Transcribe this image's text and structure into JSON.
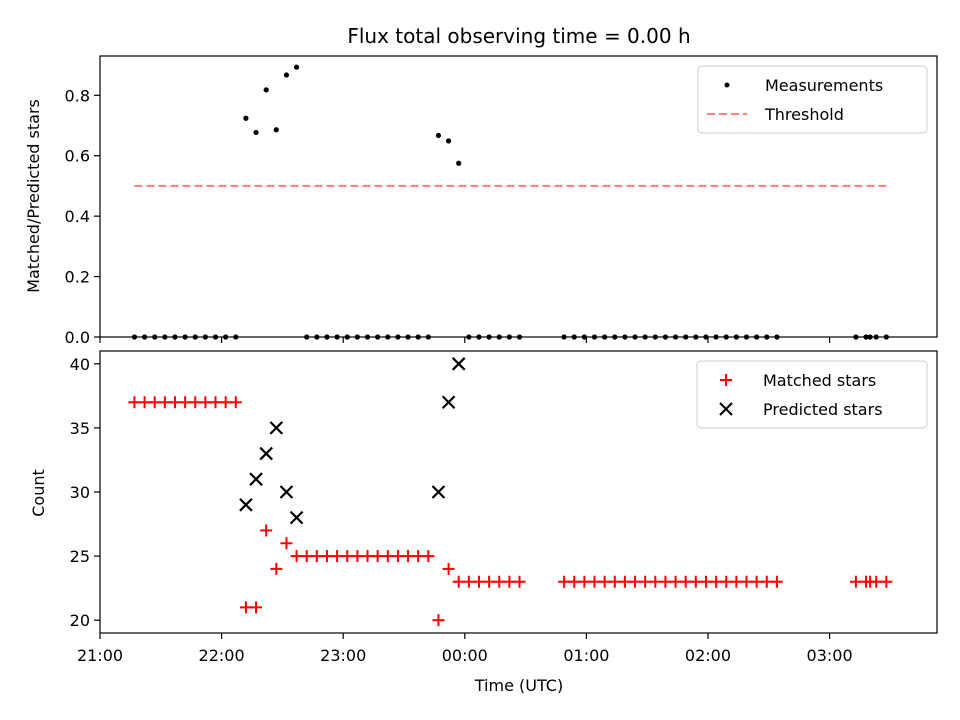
{
  "chart_data": [
    {
      "type": "scatter",
      "title": "Flux total observing time = 0.00 h",
      "ylabel": "Matched/Predicted stars",
      "xlabel": "",
      "xlim": [
        "21:00",
        "03:53"
      ],
      "ylim": [
        0,
        0.93
      ],
      "yticks": [
        0.0,
        0.2,
        0.4,
        0.6,
        0.8
      ],
      "ytick_labels": [
        "0.0",
        "0.2",
        "0.4",
        "0.6",
        "0.8"
      ],
      "legend_position": "top-right",
      "series": [
        {
          "name": "Measurements",
          "kind": "scatter",
          "marker": "dot",
          "color": "#000000",
          "x": [
            "21:17",
            "21:22",
            "21:27",
            "21:32",
            "21:37",
            "21:42",
            "21:47",
            "21:52",
            "21:57",
            "22:02",
            "22:07",
            "22:12",
            "22:17",
            "22:22",
            "22:27",
            "22:32",
            "22:37",
            "22:42",
            "22:47",
            "22:52",
            "22:57",
            "23:02",
            "23:07",
            "23:12",
            "23:17",
            "23:22",
            "23:27",
            "23:32",
            "23:37",
            "23:42",
            "23:47",
            "23:52",
            "23:57",
            "00:02",
            "00:07",
            "00:12",
            "00:17",
            "00:22",
            "00:27",
            "00:49",
            "00:54",
            "00:59",
            "01:04",
            "01:09",
            "01:14",
            "01:19",
            "01:24",
            "01:29",
            "01:34",
            "01:39",
            "01:44",
            "01:49",
            "01:54",
            "01:59",
            "02:04",
            "02:09",
            "02:14",
            "02:19",
            "02:24",
            "02:29",
            "02:34",
            "03:13",
            "03:18",
            "03:20",
            "03:23",
            "03:28"
          ],
          "y": [
            0,
            0,
            0,
            0,
            0,
            0,
            0,
            0,
            0,
            0,
            0,
            0.724,
            0.677,
            0.818,
            0.686,
            0.867,
            0.893,
            0,
            0,
            0,
            0,
            0,
            0,
            0,
            0,
            0,
            0,
            0,
            0,
            0,
            0.667,
            0.649,
            0.575,
            0,
            0,
            0,
            0,
            0,
            0,
            0,
            0,
            0,
            0,
            0,
            0,
            0,
            0,
            0,
            0,
            0,
            0,
            0,
            0,
            0,
            0,
            0,
            0,
            0,
            0,
            0,
            0,
            0,
            0,
            0,
            0,
            0
          ]
        },
        {
          "name": "Threshold",
          "kind": "line",
          "style": "dashed",
          "color": "#ff7f7f",
          "x": [
            "21:17",
            "03:28"
          ],
          "y": [
            0.5,
            0.5
          ]
        }
      ]
    },
    {
      "type": "scatter",
      "title": "",
      "ylabel": "Count",
      "xlabel": "Time (UTC)",
      "xlim": [
        "21:00",
        "03:53"
      ],
      "ylim": [
        19,
        41
      ],
      "yticks": [
        20,
        25,
        30,
        35,
        40
      ],
      "ytick_labels": [
        "20",
        "25",
        "30",
        "35",
        "40"
      ],
      "xticks": [
        "21:00",
        "22:00",
        "23:00",
        "00:00",
        "01:00",
        "02:00",
        "03:00"
      ],
      "xtick_labels": [
        "21:00",
        "22:00",
        "23:00",
        "00:00",
        "01:00",
        "02:00",
        "03:00"
      ],
      "legend_position": "top-right",
      "series": [
        {
          "name": "Matched stars",
          "kind": "scatter",
          "marker": "plus",
          "color": "#ff0000",
          "x": [
            "21:17",
            "21:22",
            "21:27",
            "21:32",
            "21:37",
            "21:42",
            "21:47",
            "21:52",
            "21:57",
            "22:02",
            "22:07",
            "22:12",
            "22:17",
            "22:22",
            "22:27",
            "22:32",
            "22:37",
            "22:42",
            "22:47",
            "22:52",
            "22:57",
            "23:02",
            "23:07",
            "23:12",
            "23:17",
            "23:22",
            "23:27",
            "23:32",
            "23:37",
            "23:42",
            "23:47",
            "23:52",
            "23:57",
            "00:02",
            "00:07",
            "00:12",
            "00:17",
            "00:22",
            "00:27",
            "00:49",
            "00:54",
            "00:59",
            "01:04",
            "01:09",
            "01:14",
            "01:19",
            "01:24",
            "01:29",
            "01:34",
            "01:39",
            "01:44",
            "01:49",
            "01:54",
            "01:59",
            "02:04",
            "02:09",
            "02:14",
            "02:19",
            "02:24",
            "02:29",
            "02:34",
            "03:13",
            "03:18",
            "03:20",
            "03:23",
            "03:28"
          ],
          "y": [
            37,
            37,
            37,
            37,
            37,
            37,
            37,
            37,
            37,
            37,
            37,
            21,
            21,
            27,
            24,
            26,
            25,
            25,
            25,
            25,
            25,
            25,
            25,
            25,
            25,
            25,
            25,
            25,
            25,
            25,
            20,
            24,
            23,
            23,
            23,
            23,
            23,
            23,
            23,
            23,
            23,
            23,
            23,
            23,
            23,
            23,
            23,
            23,
            23,
            23,
            23,
            23,
            23,
            23,
            23,
            23,
            23,
            23,
            23,
            23,
            23,
            23,
            23,
            23,
            23,
            23
          ]
        },
        {
          "name": "Predicted stars",
          "kind": "scatter",
          "marker": "x",
          "color": "#000000",
          "x": [
            "22:12",
            "22:17",
            "22:22",
            "22:27",
            "22:32",
            "22:37",
            "23:47",
            "23:52",
            "23:57"
          ],
          "y": [
            29,
            31,
            33,
            35,
            30,
            28,
            30,
            37,
            40
          ]
        }
      ]
    }
  ]
}
